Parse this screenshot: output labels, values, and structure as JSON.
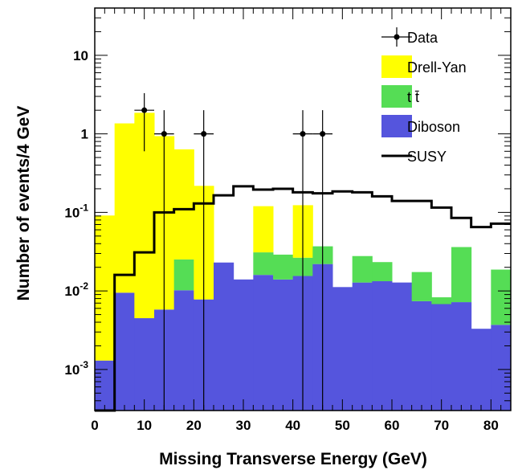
{
  "chart_data": {
    "type": "bar",
    "title": "",
    "xlabel": "Missing Transverse Energy (GeV)",
    "ylabel": "Number of events/4 GeV",
    "xlim": [
      0,
      84
    ],
    "ylim": [
      0.0003,
      40
    ],
    "yscale": "log",
    "bin_width": 4,
    "bin_edges": [
      0,
      4,
      8,
      12,
      16,
      20,
      24,
      28,
      32,
      36,
      40,
      44,
      48,
      52,
      56,
      60,
      64,
      68,
      72,
      76,
      80,
      84
    ],
    "x_ticks": [
      0,
      10,
      20,
      30,
      40,
      50,
      60,
      70,
      80
    ],
    "y_tick_labels": [
      {
        "value": 0.001,
        "base": "10",
        "exp": "-3"
      },
      {
        "value": 0.01,
        "base": "10",
        "exp": "-2"
      },
      {
        "value": 0.1,
        "base": "10",
        "exp": "-1"
      },
      {
        "value": 1,
        "base": "1",
        "exp": ""
      },
      {
        "value": 10,
        "base": "10",
        "exp": ""
      }
    ],
    "stack": [
      {
        "name": "Diboson",
        "color": "#5555dd",
        "values": [
          0.0013,
          0.0095,
          0.0045,
          0.0058,
          0.0102,
          0.0078,
          0.023,
          0.014,
          0.016,
          0.014,
          0.0155,
          0.022,
          0.0112,
          0.0128,
          0.0133,
          0.0128,
          0.0074,
          0.0068,
          0.0072,
          0.0033,
          0.0037
        ]
      },
      {
        "name": "t t̄",
        "color": "#55dd55",
        "values": [
          0,
          0,
          0,
          0,
          0.015,
          0,
          0,
          0,
          0.015,
          0.015,
          0.011,
          0.015,
          0,
          0.015,
          0.01,
          0,
          0.01,
          0.0015,
          0.029,
          0,
          0.015
        ]
      },
      {
        "name": "Drell-Yan",
        "color": "#ffff00",
        "values": [
          0.09,
          1.35,
          1.85,
          0.93,
          0.61,
          0.21,
          0,
          0,
          0.089,
          0,
          0.097,
          0,
          0,
          0,
          0,
          0,
          0,
          0,
          0,
          0,
          0
        ]
      }
    ],
    "susy": {
      "name": "SUSY",
      "color": "#000000",
      "values": [
        0.0003,
        0.016,
        0.031,
        0.1,
        0.11,
        0.13,
        0.165,
        0.215,
        0.195,
        0.2,
        0.18,
        0.175,
        0.185,
        0.18,
        0.16,
        0.14,
        0.14,
        0.115,
        0.085,
        0.065,
        0.072
      ]
    },
    "data_points": [
      {
        "x": 10,
        "y": 2,
        "y_low": 0.6,
        "y_high": 3.3
      },
      {
        "x": 14,
        "y": 1,
        "y_low": 0.0003,
        "y_high": 2.0
      },
      {
        "x": 22,
        "y": 1,
        "y_low": 0.0003,
        "y_high": 2.0
      },
      {
        "x": 42,
        "y": 1,
        "y_low": 0.0003,
        "y_high": 2.0
      },
      {
        "x": 46,
        "y": 1,
        "y_low": 0.0003,
        "y_high": 2.0
      }
    ],
    "legend": {
      "placement": "top-right",
      "entries": [
        {
          "label": "Data",
          "kind": "marker",
          "color": "#000000"
        },
        {
          "label": "Drell-Yan",
          "kind": "box",
          "color": "#ffff00"
        },
        {
          "label": "t t̄",
          "kind": "box",
          "color": "#55dd55"
        },
        {
          "label": "Diboson",
          "kind": "box",
          "color": "#5555dd"
        },
        {
          "label": "SUSY",
          "kind": "line",
          "color": "#000000"
        }
      ]
    }
  }
}
